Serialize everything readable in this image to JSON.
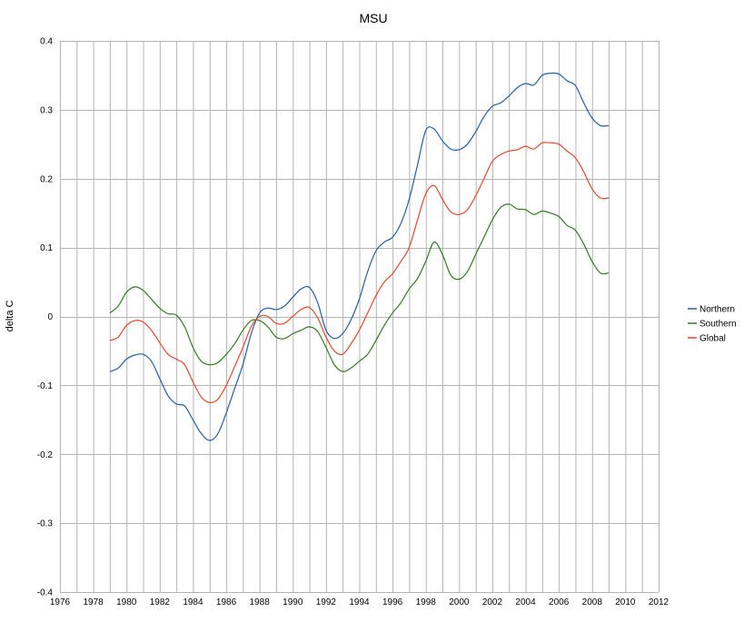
{
  "chart_data": {
    "type": "line",
    "title": "MSU",
    "xlabel": "",
    "ylabel": "delta C",
    "xlim": [
      1976,
      2012
    ],
    "ylim": [
      -0.4,
      0.4
    ],
    "x_ticks": [
      "1976",
      "1978",
      "1980",
      "1982",
      "1984",
      "1986",
      "1988",
      "1990",
      "1992",
      "1994",
      "1996",
      "1998",
      "2000",
      "2002",
      "2004",
      "2006",
      "2008",
      "2010",
      "2012"
    ],
    "y_ticks": [
      "0.4",
      "0.3",
      "0.2",
      "0.1",
      "0",
      "-0.1",
      "-0.2",
      "-0.3",
      "-0.4"
    ],
    "grid": true,
    "legend_position": "right",
    "series": [
      {
        "name": "Northern",
        "color": "#1f5fa8",
        "x": [
          1979.0,
          1979.5,
          1980.0,
          1980.5,
          1981.0,
          1981.5,
          1982.0,
          1982.5,
          1983.0,
          1983.5,
          1984.0,
          1984.5,
          1985.0,
          1985.5,
          1986.0,
          1986.5,
          1987.0,
          1987.5,
          1988.0,
          1988.5,
          1989.0,
          1989.5,
          1990.0,
          1990.5,
          1991.0,
          1991.5,
          1992.0,
          1992.5,
          1993.0,
          1993.5,
          1994.0,
          1994.5,
          1995.0,
          1995.5,
          1996.0,
          1996.5,
          1997.0,
          1997.5,
          1998.0,
          1998.5,
          1999.0,
          1999.5,
          2000.0,
          2000.5,
          2001.0,
          2001.5,
          2002.0,
          2002.5,
          2003.0,
          2003.5,
          2004.0,
          2004.5,
          2005.0,
          2005.5,
          2006.0,
          2006.5,
          2007.0,
          2007.5,
          2008.0,
          2008.5,
          2009.0
        ],
        "values": [
          -0.08,
          -0.075,
          -0.062,
          -0.056,
          -0.055,
          -0.065,
          -0.09,
          -0.115,
          -0.127,
          -0.13,
          -0.15,
          -0.17,
          -0.18,
          -0.17,
          -0.14,
          -0.105,
          -0.07,
          -0.025,
          0.005,
          0.012,
          0.01,
          0.015,
          0.028,
          0.04,
          0.042,
          0.02,
          -0.02,
          -0.032,
          -0.025,
          -0.005,
          0.025,
          0.065,
          0.095,
          0.108,
          0.115,
          0.135,
          0.17,
          0.22,
          0.27,
          0.272,
          0.255,
          0.243,
          0.242,
          0.25,
          0.268,
          0.29,
          0.305,
          0.31,
          0.32,
          0.332,
          0.338,
          0.336,
          0.35,
          0.353,
          0.352,
          0.342,
          0.335,
          0.31,
          0.288,
          0.277,
          0.277
        ]
      },
      {
        "name": "Southern",
        "color": "#2e7d1f",
        "x": [
          1979.0,
          1979.5,
          1980.0,
          1980.5,
          1981.0,
          1981.5,
          1982.0,
          1982.5,
          1983.0,
          1983.5,
          1984.0,
          1984.5,
          1985.0,
          1985.5,
          1986.0,
          1986.5,
          1987.0,
          1987.5,
          1988.0,
          1988.5,
          1989.0,
          1989.5,
          1990.0,
          1990.5,
          1991.0,
          1991.5,
          1992.0,
          1992.5,
          1993.0,
          1993.5,
          1994.0,
          1994.5,
          1995.0,
          1995.5,
          1996.0,
          1996.5,
          1997.0,
          1997.5,
          1998.0,
          1998.5,
          1999.0,
          1999.5,
          2000.0,
          2000.5,
          2001.0,
          2001.5,
          2002.0,
          2002.5,
          2003.0,
          2003.5,
          2004.0,
          2004.5,
          2005.0,
          2005.5,
          2006.0,
          2006.5,
          2007.0,
          2007.5,
          2008.0,
          2008.5,
          2009.0
        ],
        "values": [
          0.005,
          0.015,
          0.035,
          0.043,
          0.038,
          0.025,
          0.012,
          0.004,
          0.002,
          -0.015,
          -0.045,
          -0.065,
          -0.07,
          -0.067,
          -0.055,
          -0.04,
          -0.02,
          -0.006,
          -0.006,
          -0.015,
          -0.03,
          -0.032,
          -0.025,
          -0.02,
          -0.015,
          -0.022,
          -0.045,
          -0.07,
          -0.08,
          -0.075,
          -0.065,
          -0.055,
          -0.035,
          -0.013,
          0.005,
          0.02,
          0.04,
          0.055,
          0.08,
          0.108,
          0.09,
          0.06,
          0.054,
          0.065,
          0.09,
          0.115,
          0.14,
          0.158,
          0.163,
          0.156,
          0.155,
          0.148,
          0.153,
          0.15,
          0.145,
          0.132,
          0.125,
          0.105,
          0.08,
          0.063,
          0.063
        ]
      },
      {
        "name": "Global",
        "color": "#e8462c",
        "x": [
          1979.0,
          1979.5,
          1980.0,
          1980.5,
          1981.0,
          1981.5,
          1982.0,
          1982.5,
          1983.0,
          1983.5,
          1984.0,
          1984.5,
          1985.0,
          1985.5,
          1986.0,
          1986.5,
          1987.0,
          1987.5,
          1988.0,
          1988.5,
          1989.0,
          1989.5,
          1990.0,
          1990.5,
          1991.0,
          1991.5,
          1992.0,
          1992.5,
          1993.0,
          1993.5,
          1994.0,
          1994.5,
          1995.0,
          1995.5,
          1996.0,
          1996.5,
          1997.0,
          1997.5,
          1998.0,
          1998.5,
          1999.0,
          1999.5,
          2000.0,
          2000.5,
          2001.0,
          2001.5,
          2002.0,
          2002.5,
          2003.0,
          2003.5,
          2004.0,
          2004.5,
          2005.0,
          2005.5,
          2006.0,
          2006.5,
          2007.0,
          2007.5,
          2008.0,
          2008.5,
          2009.0
        ],
        "values": [
          -0.035,
          -0.03,
          -0.013,
          -0.006,
          -0.008,
          -0.02,
          -0.038,
          -0.055,
          -0.062,
          -0.07,
          -0.095,
          -0.117,
          -0.125,
          -0.12,
          -0.1,
          -0.073,
          -0.045,
          -0.015,
          0.0,
          0.0,
          -0.01,
          -0.01,
          0.0,
          0.01,
          0.013,
          -0.002,
          -0.03,
          -0.05,
          -0.055,
          -0.04,
          -0.02,
          0.005,
          0.03,
          0.05,
          0.062,
          0.08,
          0.1,
          0.14,
          0.178,
          0.19,
          0.17,
          0.152,
          0.148,
          0.155,
          0.175,
          0.2,
          0.225,
          0.235,
          0.24,
          0.242,
          0.247,
          0.243,
          0.252,
          0.252,
          0.25,
          0.24,
          0.23,
          0.21,
          0.185,
          0.172,
          0.172
        ]
      }
    ]
  }
}
